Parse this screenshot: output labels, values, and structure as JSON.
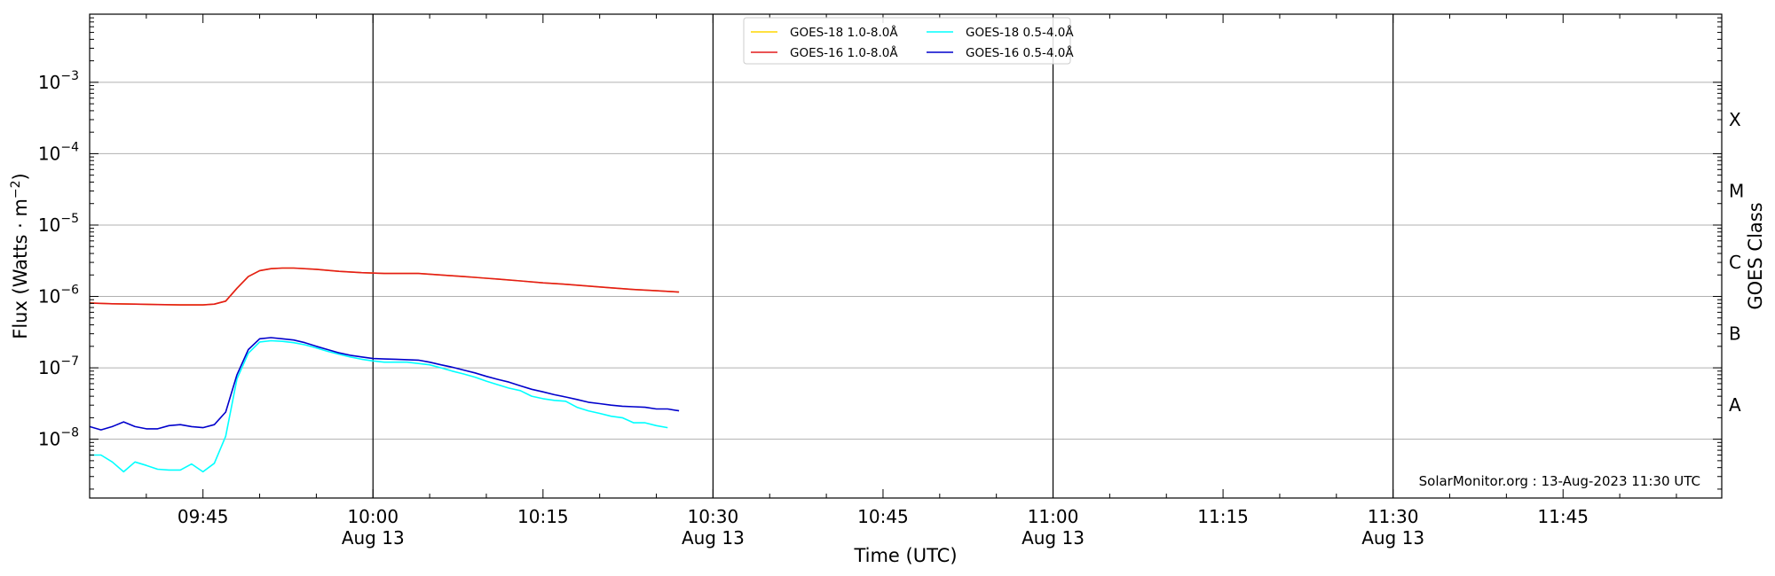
{
  "chart_data": {
    "type": "line",
    "xlabel": "Time (UTC)",
    "ylabel": "Flux (Watts · m",
    "ylabel_exp": "−2",
    "ylabel_close": ")",
    "right_label": "GOES Class",
    "y_scale": "log",
    "ylim": [
      1.5e-09,
      0.009
    ],
    "xlim_minutes": [
      0,
      144
    ],
    "grid": "horizontal at decades",
    "legend_position": "top-center",
    "credit": "SolarMonitor.org : 13-Aug-2023 11:30 UTC",
    "y_ticks": [
      {
        "base": "10",
        "exp": "−8",
        "value": 1e-08
      },
      {
        "base": "10",
        "exp": "−7",
        "value": 1e-07
      },
      {
        "base": "10",
        "exp": "−6",
        "value": 1e-06
      },
      {
        "base": "10",
        "exp": "−5",
        "value": 1e-05
      },
      {
        "base": "10",
        "exp": "−4",
        "value": 0.0001
      },
      {
        "base": "10",
        "exp": "−3",
        "value": 0.001
      }
    ],
    "x_ticks": [
      {
        "minute": 10,
        "label": "09:45",
        "sub": ""
      },
      {
        "minute": 25,
        "label": "10:00",
        "sub": "Aug 13"
      },
      {
        "minute": 40,
        "label": "10:15",
        "sub": ""
      },
      {
        "minute": 55,
        "label": "10:30",
        "sub": "Aug 13"
      },
      {
        "minute": 70,
        "label": "10:45",
        "sub": ""
      },
      {
        "minute": 85,
        "label": "11:00",
        "sub": "Aug 13"
      },
      {
        "minute": 100,
        "label": "11:15",
        "sub": ""
      },
      {
        "minute": 115,
        "label": "11:30",
        "sub": "Aug 13"
      },
      {
        "minute": 130,
        "label": "11:45",
        "sub": ""
      }
    ],
    "vertical_lines_minutes": [
      25,
      55,
      85,
      115
    ],
    "goes_classes": [
      {
        "label": "A",
        "value": 3e-08
      },
      {
        "label": "B",
        "value": 3e-07
      },
      {
        "label": "C",
        "value": 3e-06
      },
      {
        "label": "M",
        "value": 3e-05
      },
      {
        "label": "X",
        "value": 0.0003
      }
    ],
    "series": [
      {
        "name": "GOES-18 1.0-8.0Å",
        "color": "#ffd700",
        "x": [
          0,
          2,
          4,
          6,
          8,
          10,
          11,
          12,
          13,
          14,
          15,
          16,
          17,
          18,
          20,
          22,
          24,
          26,
          28,
          29,
          30,
          31,
          32,
          33,
          34,
          35,
          36,
          38,
          40,
          42,
          44,
          46,
          48,
          50,
          52
        ],
        "y": [
          8.1e-07,
          7.9e-07,
          7.8e-07,
          7.7e-07,
          7.6e-07,
          7.6e-07,
          7.8e-07,
          8.6e-07,
          1.3e-06,
          1.9e-06,
          2.3e-06,
          2.45e-06,
          2.5e-06,
          2.5e-06,
          2.4e-06,
          2.25e-06,
          2.15e-06,
          2.1e-06,
          2.1e-06,
          2.1e-06,
          2.05e-06,
          2e-06,
          1.95e-06,
          1.9e-06,
          1.85e-06,
          1.8e-06,
          1.75e-06,
          1.65e-06,
          1.55e-06,
          1.48e-06,
          1.4e-06,
          1.32e-06,
          1.25e-06,
          1.2e-06,
          1.15e-06
        ]
      },
      {
        "name": "GOES-16 1.0-8.0Å",
        "color": "#e31a1c",
        "x": [
          0,
          2,
          4,
          6,
          8,
          10,
          11,
          12,
          13,
          14,
          15,
          16,
          17,
          18,
          20,
          22,
          24,
          26,
          28,
          29,
          30,
          31,
          32,
          33,
          34,
          35,
          36,
          38,
          40,
          42,
          44,
          46,
          48,
          50,
          52
        ],
        "y": [
          8.1e-07,
          7.9e-07,
          7.8e-07,
          7.7e-07,
          7.6e-07,
          7.6e-07,
          7.8e-07,
          8.6e-07,
          1.3e-06,
          1.9e-06,
          2.3e-06,
          2.45e-06,
          2.5e-06,
          2.5e-06,
          2.4e-06,
          2.25e-06,
          2.15e-06,
          2.1e-06,
          2.1e-06,
          2.1e-06,
          2.05e-06,
          2e-06,
          1.95e-06,
          1.9e-06,
          1.85e-06,
          1.8e-06,
          1.75e-06,
          1.65e-06,
          1.55e-06,
          1.48e-06,
          1.4e-06,
          1.32e-06,
          1.25e-06,
          1.2e-06,
          1.15e-06
        ]
      },
      {
        "name": "GOES-18 0.5-4.0Å",
        "color": "#00ffff",
        "x": [
          0,
          1,
          2,
          3,
          4,
          5,
          6,
          7,
          8,
          9,
          10,
          11,
          12,
          13,
          14,
          15,
          16,
          17,
          18,
          19,
          20,
          21,
          22,
          23,
          24,
          25,
          26,
          27,
          28,
          29,
          30,
          31,
          32,
          33,
          34,
          35,
          36,
          37,
          38,
          39,
          40,
          41,
          42,
          43,
          44,
          45,
          46,
          47,
          48,
          49,
          50,
          51
        ],
        "y": [
          6e-09,
          6e-09,
          4.8e-09,
          3.5e-09,
          4.8e-09,
          4.3e-09,
          3.8e-09,
          3.7e-09,
          3.7e-09,
          4.5e-09,
          3.5e-09,
          4.6e-09,
          1.1e-08,
          7e-08,
          1.6e-07,
          2.3e-07,
          2.4e-07,
          2.35e-07,
          2.25e-07,
          2.1e-07,
          1.9e-07,
          1.7e-07,
          1.55e-07,
          1.42e-07,
          1.32e-07,
          1.25e-07,
          1.2e-07,
          1.2e-07,
          1.2e-07,
          1.15e-07,
          1.1e-07,
          1e-07,
          9e-08,
          8.2e-08,
          7.4e-08,
          6.5e-08,
          5.8e-08,
          5.2e-08,
          4.8e-08,
          4e-08,
          3.7e-08,
          3.5e-08,
          3.4e-08,
          2.8e-08,
          2.5e-08,
          2.3e-08,
          2.1e-08,
          2e-08,
          1.7e-08,
          1.7e-08,
          1.55e-08,
          1.45e-08
        ]
      },
      {
        "name": "GOES-16 0.5-4.0Å",
        "color": "#0000cc",
        "x": [
          0,
          1,
          2,
          3,
          4,
          5,
          6,
          7,
          8,
          9,
          10,
          11,
          12,
          13,
          14,
          15,
          16,
          17,
          18,
          19,
          20,
          21,
          22,
          23,
          24,
          25,
          26,
          27,
          28,
          29,
          30,
          31,
          32,
          33,
          34,
          35,
          36,
          37,
          38,
          39,
          40,
          41,
          42,
          43,
          44,
          45,
          46,
          47,
          48,
          49,
          50,
          51,
          52
        ],
        "y": [
          1.5e-08,
          1.35e-08,
          1.5e-08,
          1.75e-08,
          1.5e-08,
          1.4e-08,
          1.4e-08,
          1.55e-08,
          1.6e-08,
          1.5e-08,
          1.45e-08,
          1.6e-08,
          2.4e-08,
          8e-08,
          1.8e-07,
          2.55e-07,
          2.65e-07,
          2.55e-07,
          2.45e-07,
          2.25e-07,
          2e-07,
          1.8e-07,
          1.62e-07,
          1.5e-07,
          1.42e-07,
          1.35e-07,
          1.33e-07,
          1.32e-07,
          1.3e-07,
          1.28e-07,
          1.2e-07,
          1.1e-07,
          1.02e-07,
          9.3e-08,
          8.5e-08,
          7.6e-08,
          6.9e-08,
          6.3e-08,
          5.6e-08,
          5e-08,
          4.6e-08,
          4.2e-08,
          3.9e-08,
          3.6e-08,
          3.3e-08,
          3.15e-08,
          3e-08,
          2.9e-08,
          2.85e-08,
          2.8e-08,
          2.65e-08,
          2.65e-08,
          2.5e-08
        ]
      }
    ],
    "legend_entries": [
      {
        "label": "GOES-18 1.0-8.0Å",
        "color": "#ffd700",
        "col": 0,
        "row": 0
      },
      {
        "label": "GOES-16 1.0-8.0Å",
        "color": "#e31a1c",
        "col": 0,
        "row": 1
      },
      {
        "label": "GOES-18 0.5-4.0Å",
        "color": "#00ffff",
        "col": 1,
        "row": 0
      },
      {
        "label": "GOES-16 0.5-4.0Å",
        "color": "#0000cc",
        "col": 1,
        "row": 1
      }
    ]
  }
}
